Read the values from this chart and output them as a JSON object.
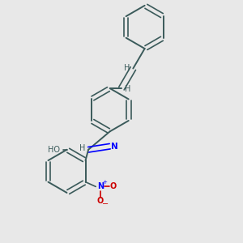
{
  "background_color": "#e8e8e8",
  "bond_color": "#3a5a5a",
  "nitrogen_color": "#0000ff",
  "oxygen_color": "#cc0000",
  "text_color": "#3a5a5a",
  "figsize": [
    3.0,
    3.0
  ],
  "dpi": 100,
  "xlim": [
    -2.5,
    2.5
  ],
  "ylim": [
    -3.5,
    3.8
  ]
}
